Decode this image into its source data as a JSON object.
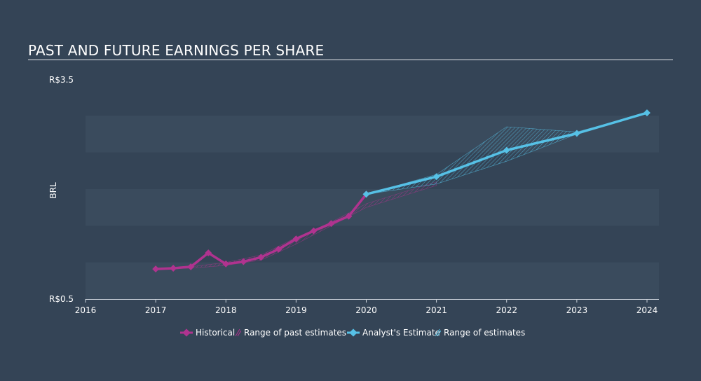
{
  "chart_data": {
    "type": "line",
    "title": "PAST AND FUTURE EARNINGS PER SHARE",
    "ylabel": "BRL",
    "y_tick_labels": [
      "R$3.5",
      "R$0.5"
    ],
    "ylim": [
      0.5,
      3.5
    ],
    "x_tick_labels": [
      "2016",
      "2017",
      "2018",
      "2019",
      "2020",
      "2021",
      "2022",
      "2023",
      "2024"
    ],
    "xlim": [
      2016,
      2024.17
    ],
    "grid": "horizontal bands",
    "legend_position": "bottom-center",
    "colors": {
      "historical": "#b0338f",
      "estimate": "#56c1e6",
      "band": "#3a4b5d",
      "background": "#344456"
    },
    "series": [
      {
        "name": "Historical",
        "x": [
          2017.0,
          2017.25,
          2017.5,
          2017.75,
          2018.0,
          2018.25,
          2018.5,
          2018.75,
          2019.0,
          2019.25,
          2019.5,
          2019.75,
          2020.0
        ],
        "y": [
          0.91,
          0.92,
          0.94,
          1.13,
          0.98,
          1.01,
          1.07,
          1.18,
          1.32,
          1.43,
          1.53,
          1.63,
          1.93
        ]
      },
      {
        "name": "Analyst's Estimate",
        "x": [
          2020.0,
          2021.0,
          2022.0,
          2023.0,
          2024.0
        ],
        "y": [
          1.93,
          2.17,
          2.53,
          2.76,
          3.04
        ]
      }
    ],
    "past_estimate_range": {
      "name": "Range of past estimates",
      "x": [
        2017.0,
        2017.5,
        2018.0,
        2018.5,
        2019.0,
        2019.5,
        2020.0,
        2021.0
      ],
      "low": [
        0.91,
        0.92,
        0.96,
        1.03,
        1.25,
        1.5,
        1.75,
        2.05
      ],
      "high": [
        0.91,
        0.94,
        1.0,
        1.1,
        1.34,
        1.55,
        1.8,
        2.1
      ]
    },
    "estimate_range": {
      "name": "Range of estimates",
      "x": [
        2020.0,
        2021.0,
        2022.0,
        2023.0,
        2024.0
      ],
      "low": [
        1.93,
        2.07,
        2.38,
        2.75,
        3.04
      ],
      "high": [
        1.93,
        2.2,
        2.85,
        2.78,
        3.04
      ]
    }
  },
  "legend": {
    "historical": "Historical",
    "past_range": "Range of past estimates",
    "estimate": "Analyst's Estimate",
    "estimate_range": "Range of estimates"
  }
}
